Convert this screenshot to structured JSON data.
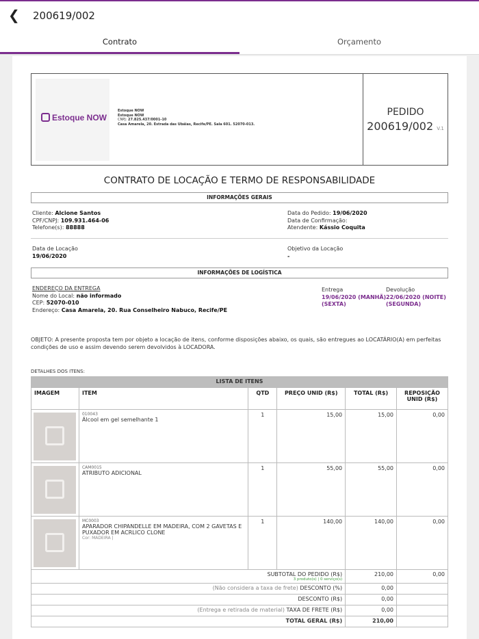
{
  "header": {
    "title": "200619/002",
    "back_icon": "chevron-left-icon"
  },
  "tabs": [
    {
      "label": "Contrato",
      "active": true
    },
    {
      "label": "Orçamento",
      "active": false
    }
  ],
  "accent": "#7b2d8e",
  "company": {
    "logo_text": "Estoque NOW",
    "name1": "Estoque NOW",
    "name2": "Estoque NOW",
    "cnpj_label": "CNPJ:",
    "cnpj": "27.825.437/0001-10",
    "address": "Casa Amarela, 20. Estrada das Ubáias, Recife/PE. Sala 601. 52070-013."
  },
  "pedido": {
    "label": "PEDIDO",
    "number": "200619/002",
    "version": "V.1"
  },
  "doc_title": "CONTRATO DE LOCAÇÃO E TERMO DE RESPONSABILIDADE",
  "info_gerais": {
    "title": "INFORMAÇÕES GERAIS",
    "cliente_label": "Cliente:",
    "cliente": "Alcione Santos",
    "cpf_label": "CPF/CNPJ:",
    "cpf": "109.931.464-06",
    "tel_label": "Telefone(s):",
    "tel": "88888",
    "data_pedido_label": "Data do Pedido:",
    "data_pedido": "19/06/2020",
    "data_conf_label": "Data de Confirmação:",
    "atendente_label": "Atendente:",
    "atendente": "Kássio Coquita",
    "data_locacao_label": "Data de Locação",
    "data_locacao": "19/06/2020",
    "objetivo_label": "Objetivo da Locação",
    "objetivo": "-"
  },
  "logistica": {
    "title": "INFORMAÇÕES DE LOGÍSTICA",
    "endereco_title": "ENDEREÇO DA ENTREGA",
    "local_label": "Nome do Local:",
    "local": "não informado",
    "cep_label": "CEP:",
    "cep": "52070-010",
    "endereco_label": "Endereço:",
    "endereco": "Casa Amarela, 20. Rua Conselheiro Nabuco, Recife/PE",
    "entrega_label": "Entrega",
    "entrega": "19/06/2020 (MANHÃ)",
    "entrega_dia": "(SEXTA)",
    "devolucao_label": "Devolução",
    "devolucao": "22/06/2020 (NOITE)",
    "devolucao_dia": "(SEGUNDA)"
  },
  "objeto": "OBJETO: A presente proposta tem por objeto a locação de itens, conforme disposições abaixo, os quais, são entregues ao LOCATÁRIO(A) em perfeitas condições de uso e assim devendo serem devolvidos à LOCADORA.",
  "detalhes_label": "DETALHES DOS ITENS:",
  "items_table": {
    "caption": "LISTA DE ITENS",
    "columns": [
      "IMAGEM",
      "ITEM",
      "QTD",
      "PREÇO UNID (R$)",
      "TOTAL (R$)",
      "REPOSIÇÃO UNID (R$)"
    ],
    "rows": [
      {
        "code": "010043",
        "name": "Álcool em gel semelhante 1",
        "extra": "",
        "qtd": "1",
        "preco": "15,00",
        "total": "15,00",
        "reposicao": "0,00"
      },
      {
        "code": "CAM0015",
        "name": "ATRIBUTO ADICIONAL",
        "extra": "",
        "qtd": "1",
        "preco": "55,00",
        "total": "55,00",
        "reposicao": "0,00"
      },
      {
        "code": "MC0003",
        "name": "APARADOR CHIPANDELLE EM MADEIRA, COM 2 GAVETAS E PUXADOR EM ACRLICO CLONE",
        "extra": "Cor: MADEIRA |",
        "qtd": "1",
        "preco": "140,00",
        "total": "140,00",
        "reposicao": "0,00"
      }
    ]
  },
  "totals": {
    "subtotal_label": "SUBTOTAL DO PEDIDO (R$)",
    "subtotal_note": "3 produto(s) | 0 serviço(s)",
    "subtotal": "210,00",
    "subtotal_repos": "0,00",
    "desc_pct_note": "(Não considera a taxa de frete)",
    "desc_pct_label": "DESCONTO (%)",
    "desc_pct": "0,00",
    "desc_label": "DESCONTO (R$)",
    "desc": "0,00",
    "frete_note": "(Entrega e retirada de material)",
    "frete_label": "TAXA DE FRETE (R$)",
    "frete": "0,00",
    "total_label": "TOTAL GERAL (R$)",
    "total": "210,00"
  }
}
